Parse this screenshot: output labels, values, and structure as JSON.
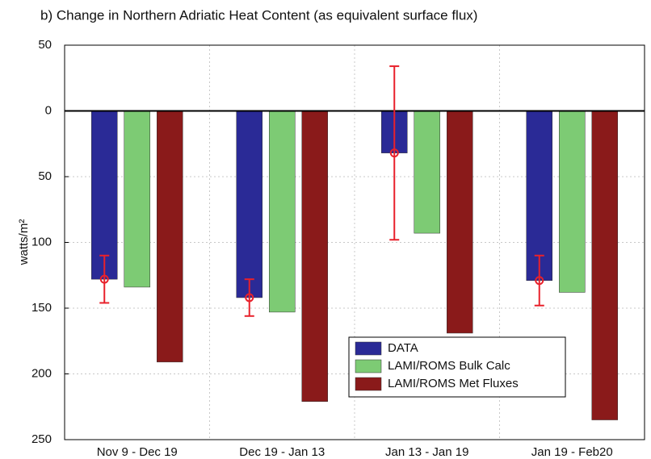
{
  "chart_data": {
    "type": "bar",
    "title": "b) Change in Northern Adriatic Heat Content (as equivalent surface flux)",
    "y_label": "watts/m²",
    "categories": [
      "Nov 9 - Dec 19",
      "Dec 19 - Jan 13",
      "Jan 13 - Jan 19",
      "Jan 19 - Feb20"
    ],
    "series": [
      {
        "name": "DATA",
        "color": "#2a2a96",
        "values": [
          128,
          142,
          32,
          129
        ],
        "errors": [
          18,
          14,
          66,
          19
        ],
        "error_color": "#e8212b"
      },
      {
        "name": "LAMI/ROMS Bulk Calc",
        "color": "#7dcb74",
        "values": [
          134,
          153,
          93,
          138
        ]
      },
      {
        "name": "LAMI/ROMS Met Fluxes",
        "color": "#8a1a1a",
        "values": [
          191,
          221,
          169,
          235
        ]
      }
    ],
    "ylim": [
      -50,
      250
    ],
    "y_inverted": true,
    "yticks": [
      {
        "value": -50,
        "label": "50"
      },
      0,
      50,
      100,
      150,
      200,
      250
    ],
    "grid": true,
    "legend": "lower right"
  }
}
